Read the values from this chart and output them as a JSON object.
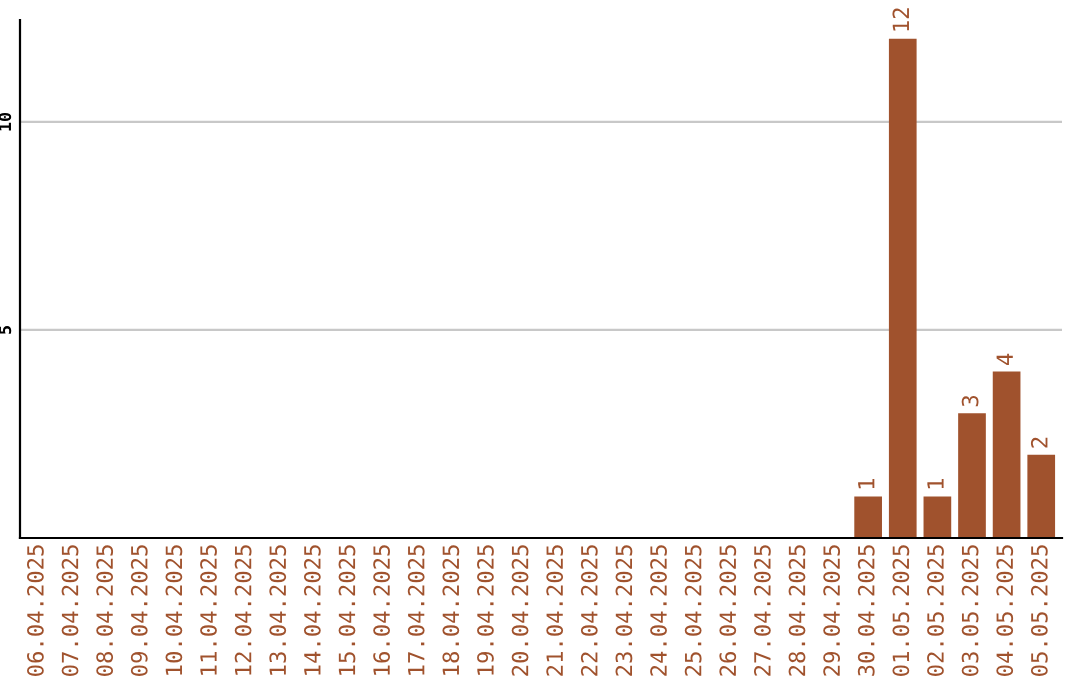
{
  "chart_data": {
    "type": "bar",
    "categories": [
      "06.04.2025",
      "07.04.2025",
      "08.04.2025",
      "09.04.2025",
      "10.04.2025",
      "11.04.2025",
      "12.04.2025",
      "13.04.2025",
      "14.04.2025",
      "15.04.2025",
      "16.04.2025",
      "17.04.2025",
      "18.04.2025",
      "19.04.2025",
      "20.04.2025",
      "21.04.2025",
      "22.04.2025",
      "23.04.2025",
      "24.04.2025",
      "25.04.2025",
      "26.04.2025",
      "27.04.2025",
      "28.04.2025",
      "29.04.2025",
      "30.04.2025",
      "01.05.2025",
      "02.05.2025",
      "03.05.2025",
      "04.05.2025",
      "05.05.2025"
    ],
    "values": [
      0,
      0,
      0,
      0,
      0,
      0,
      0,
      0,
      0,
      0,
      0,
      0,
      0,
      0,
      0,
      0,
      0,
      0,
      0,
      0,
      0,
      0,
      0,
      0,
      1,
      12,
      1,
      3,
      4,
      2
    ],
    "value_labels": [
      null,
      null,
      null,
      null,
      null,
      null,
      null,
      null,
      null,
      null,
      null,
      null,
      null,
      null,
      null,
      null,
      null,
      null,
      null,
      null,
      null,
      null,
      null,
      null,
      "1",
      "12",
      "1",
      "3",
      "4",
      "2"
    ],
    "color": "#a0522d",
    "ylim": [
      0,
      12.45
    ],
    "yticks": [
      5,
      10
    ],
    "grid": "y"
  }
}
